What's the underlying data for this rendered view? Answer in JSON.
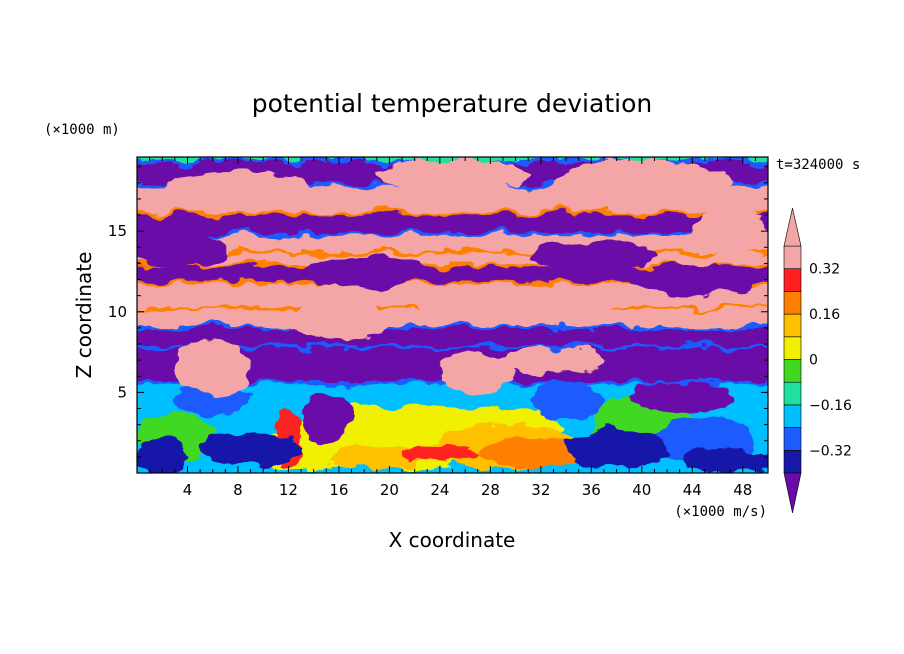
{
  "chart_data": {
    "type": "heatmap",
    "title": "potential temperature deviation",
    "xlabel": "X coordinate",
    "ylabel": "Z coordinate",
    "x_unit": "(×1000 m/s)",
    "y_unit": "(×1000 m)",
    "time_label": "t=324000 s",
    "xlim": [
      0,
      50
    ],
    "ylim": [
      0,
      19.6
    ],
    "x_ticks": [
      "4",
      "8",
      "12",
      "16",
      "20",
      "24",
      "28",
      "32",
      "36",
      "40",
      "44",
      "48"
    ],
    "y_ticks": [
      "5",
      "10",
      "15"
    ],
    "colorbar": {
      "levels": [
        -0.4,
        -0.32,
        -0.24,
        -0.16,
        -0.08,
        0,
        0.08,
        0.16,
        0.24,
        0.32,
        0.4
      ],
      "tick_labels": [
        "0.32",
        "0.16",
        "0",
        "−0.16",
        "−0.32"
      ],
      "tick_values": [
        0.32,
        0.16,
        0,
        -0.16,
        -0.32
      ],
      "colors": [
        "#6a0aa8",
        "#1717a8",
        "#1f5cff",
        "#00bfff",
        "#20e0a0",
        "#40d820",
        "#f0f000",
        "#ffc000",
        "#ff8000",
        "#ff2020",
        "#f4a6a6"
      ],
      "extend": "both"
    }
  }
}
